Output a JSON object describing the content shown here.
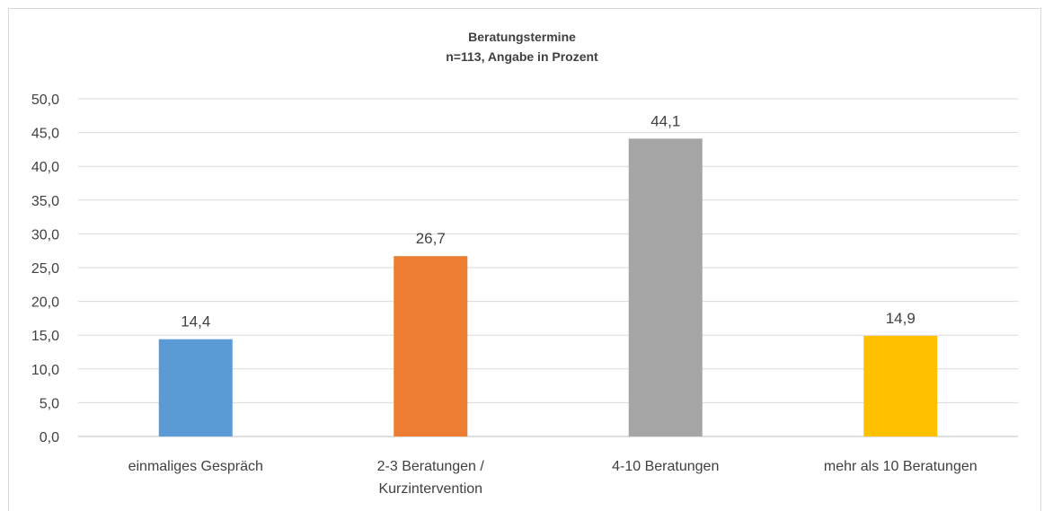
{
  "chart_data": {
    "type": "bar",
    "title": "Beratungstermine",
    "subtitle": "n=113, Angabe in Prozent",
    "xlabel": "",
    "ylabel": "",
    "categories": [
      [
        "einmaliges Gespräch"
      ],
      [
        "2-3 Beratungen /",
        "Kurzintervention"
      ],
      [
        "4-10 Beratungen"
      ],
      [
        "mehr als 10 Beratungen"
      ]
    ],
    "values": [
      14.4,
      26.7,
      44.1,
      14.9
    ],
    "value_labels": [
      "14,4",
      "26,7",
      "44,1",
      "14,9"
    ],
    "colors": [
      "#5b9bd5",
      "#ed7d31",
      "#a5a5a5",
      "#ffc000"
    ],
    "ylim": [
      0,
      50
    ],
    "yticks": [
      0,
      5,
      10,
      15,
      20,
      25,
      30,
      35,
      40,
      45,
      50
    ],
    "ytick_labels": [
      "0,0",
      "5,0",
      "10,0",
      "15,0",
      "20,0",
      "25,0",
      "30,0",
      "35,0",
      "40,0",
      "45,0",
      "50,0"
    ],
    "grid": true,
    "legend": "none"
  }
}
